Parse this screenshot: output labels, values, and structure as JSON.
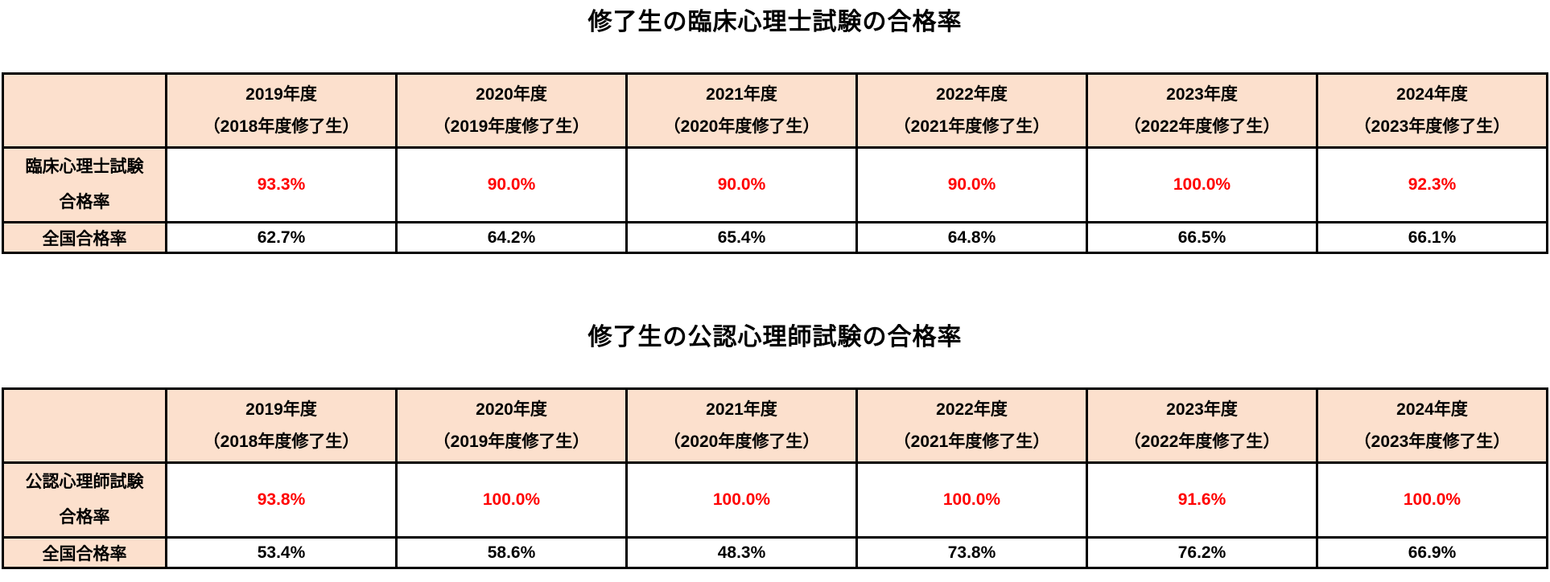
{
  "colors": {
    "header_bg": "#FCE0CD",
    "border": "#000000",
    "pass_rate_text": "#FF0000",
    "national_text": "#000000"
  },
  "tables": [
    {
      "title": "修了生の臨床心理士試験の合格率",
      "columns": [
        {
          "year": "2019年度",
          "cohort": "（2018年度修了生）"
        },
        {
          "year": "2020年度",
          "cohort": "（2019年度修了生）"
        },
        {
          "year": "2021年度",
          "cohort": "（2020年度修了生）"
        },
        {
          "year": "2022年度",
          "cohort": "（2021年度修了生）"
        },
        {
          "year": "2023年度",
          "cohort": "（2022年度修了生）"
        },
        {
          "year": "2024年度",
          "cohort": "（2023年度修了生）"
        }
      ],
      "pass_rate_row": {
        "label_line1": "臨床心理士試験",
        "label_line2": "合格率",
        "values": [
          "93.3%",
          "90.0%",
          "90.0%",
          "90.0%",
          "100.0%",
          "92.3%"
        ]
      },
      "national_row": {
        "label": "全国合格率",
        "values": [
          "62.7%",
          "64.2%",
          "65.4%",
          "64.8%",
          "66.5%",
          "66.1%"
        ]
      }
    },
    {
      "title": "修了生の公認心理師試験の合格率",
      "columns": [
        {
          "year": "2019年度",
          "cohort": "（2018年度修了生）"
        },
        {
          "year": "2020年度",
          "cohort": "（2019年度修了生）"
        },
        {
          "year": "2021年度",
          "cohort": "（2020年度修了生）"
        },
        {
          "year": "2022年度",
          "cohort": "（2021年度修了生）"
        },
        {
          "year": "2023年度",
          "cohort": "（2022年度修了生）"
        },
        {
          "year": "2024年度",
          "cohort": "（2023年度修了生）"
        }
      ],
      "pass_rate_row": {
        "label_line1": "公認心理師試験",
        "label_line2": "合格率",
        "values": [
          "93.8%",
          "100.0%",
          "100.0%",
          "100.0%",
          "91.6%",
          "100.0%"
        ]
      },
      "national_row": {
        "label": "全国合格率",
        "values": [
          "53.4%",
          "58.6%",
          "48.3%",
          "73.8%",
          "76.2%",
          "66.9%"
        ]
      }
    }
  ]
}
